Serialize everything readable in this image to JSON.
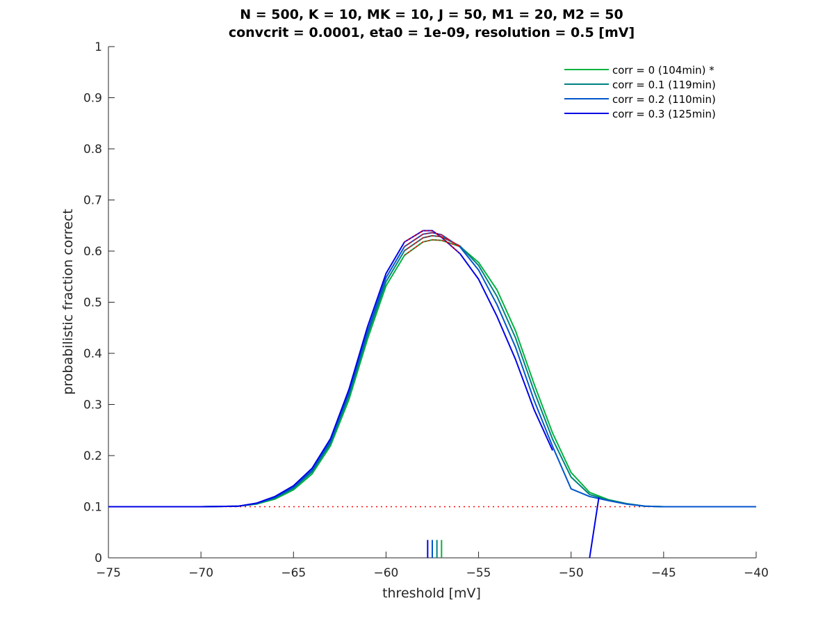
{
  "chart_data": {
    "type": "line",
    "title": [
      "N = 500, K = 10, MK = 10, J = 50, M1 = 20, M2 = 50",
      "convcrit = 0.0001, eta0 = 1e-09, resolution = 0.5 [mV]"
    ],
    "xlabel": "threshold [mV]",
    "ylabel": "probabilistic fraction correct",
    "xlim": [
      -75,
      -40
    ],
    "ylim": [
      0,
      1
    ],
    "xticks": [
      -75,
      -70,
      -65,
      -60,
      -55,
      -50,
      -45,
      -40
    ],
    "xtick_labels": [
      "−75",
      "−70",
      "−65",
      "−60",
      "−55",
      "−50",
      "−45",
      "−40"
    ],
    "yticks": [
      0,
      0.1,
      0.2,
      0.3,
      0.4,
      0.5,
      0.6,
      0.7,
      0.8,
      0.9,
      1
    ],
    "ytick_labels": [
      "0",
      "0.1",
      "0.2",
      "0.3",
      "0.4",
      "0.5",
      "0.6",
      "0.7",
      "0.8",
      "0.9",
      "1"
    ],
    "grid": false,
    "legend_position": "top-right",
    "chance_line": {
      "y": 0.1,
      "color": "#ff0000",
      "style": "dotted"
    },
    "series": [
      {
        "name": "corr = 0 (104min) *",
        "color": "#00b33c",
        "x": [
          -75,
          -70,
          -68,
          -67,
          -66,
          -65,
          -64,
          -63,
          -62,
          -61,
          -60,
          -59,
          -58,
          -57.5,
          -57,
          -56,
          -55,
          -54,
          -53,
          -52,
          -51,
          -50,
          -49,
          -48,
          -47,
          -46,
          -45,
          -40
        ],
        "y": [
          0.1,
          0.1,
          0.101,
          0.105,
          0.115,
          0.133,
          0.164,
          0.219,
          0.31,
          0.428,
          0.532,
          0.592,
          0.618,
          0.622,
          0.621,
          0.609,
          0.578,
          0.524,
          0.444,
          0.34,
          0.244,
          0.167,
          0.128,
          0.114,
          0.106,
          0.101,
          0.1,
          0.1
        ],
        "peak_x": -57.0
      },
      {
        "name": "corr = 0.1 (119min)",
        "color": "#007f7f",
        "x": [
          -75,
          -70,
          -68,
          -67,
          -66,
          -65,
          -64,
          -63,
          -62,
          -61,
          -60,
          -59,
          -58,
          -57.5,
          -57,
          -56,
          -55,
          -54,
          -53,
          -52,
          -51,
          -50,
          -49,
          -48,
          -47,
          -46,
          -45,
          -40
        ],
        "y": [
          0.1,
          0.1,
          0.101,
          0.106,
          0.117,
          0.136,
          0.168,
          0.224,
          0.318,
          0.436,
          0.54,
          0.601,
          0.626,
          0.63,
          0.628,
          0.61,
          0.572,
          0.511,
          0.43,
          0.326,
          0.232,
          0.158,
          0.124,
          0.113,
          0.106,
          0.101,
          0.1,
          0.1
        ],
        "peak_x": -57.25
      },
      {
        "name": "corr = 0.2 (110min)",
        "color": "#0055cc",
        "x": [
          -75,
          -70,
          -68,
          -67,
          -66,
          -65,
          -64,
          -63,
          -62,
          -61,
          -60,
          -59,
          -58,
          -57.5,
          -57,
          -56,
          -55,
          -54,
          -53,
          -52,
          -51,
          -50,
          -49,
          -48,
          -47,
          -46,
          -45,
          -40
        ],
        "y": [
          0.1,
          0.1,
          0.101,
          0.106,
          0.118,
          0.138,
          0.171,
          0.228,
          0.323,
          0.443,
          0.548,
          0.609,
          0.633,
          0.636,
          0.632,
          0.608,
          0.563,
          0.495,
          0.412,
          0.308,
          0.218,
          0.135,
          0.12,
          0.112,
          0.105,
          0.101,
          0.1,
          0.1
        ],
        "peak_x": -57.5
      },
      {
        "name": "corr = 0.3 (125min)",
        "color": "#0000e6",
        "x": [
          -75,
          -70,
          -68,
          -67,
          -66,
          -65,
          -64,
          -63,
          -62,
          -61,
          -60,
          -59,
          -58,
          -57.5,
          -57,
          -56,
          -55,
          -54,
          -53,
          -52,
          -51
        ],
        "y": [
          0.1,
          0.1,
          0.101,
          0.107,
          0.12,
          0.141,
          0.175,
          0.233,
          0.33,
          0.452,
          0.556,
          0.618,
          0.64,
          0.64,
          0.627,
          0.595,
          0.545,
          0.472,
          0.388,
          0.29,
          0.21
        ],
        "peak_x": -57.75
      }
    ],
    "annotations": {
      "blue_segment": {
        "x": [
          -49,
          -48.5
        ],
        "y": [
          0,
          0.118
        ],
        "color": "#0000e6"
      },
      "peak_tick_height": 0.035,
      "red_peak_marks": {
        "color": "#ff0000",
        "x_range": [
          -59,
          -55.5
        ]
      }
    }
  }
}
